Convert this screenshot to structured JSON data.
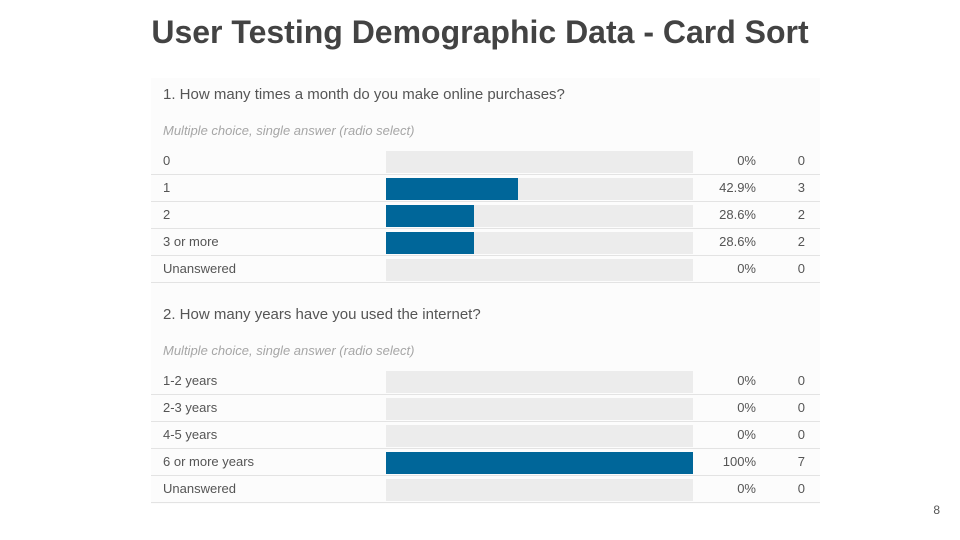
{
  "slide": {
    "title": "User Testing Demographic Data - Card Sort",
    "page_number": "8"
  },
  "colors": {
    "bar": "#006699",
    "track": "#ececec"
  },
  "chart_data": [
    {
      "type": "bar",
      "title": "1. How many times a month do you make online purchases?",
      "subtitle": "Multiple choice, single answer (radio select)",
      "categories": [
        "0",
        "1",
        "2",
        "3 or more",
        "Unanswered"
      ],
      "percent_labels": [
        "0%",
        "42.9%",
        "28.6%",
        "28.6%",
        "0%"
      ],
      "values": [
        0,
        3,
        2,
        2,
        0
      ],
      "percent": [
        0,
        42.9,
        28.6,
        28.6,
        0
      ],
      "xlim": [
        0,
        100
      ]
    },
    {
      "type": "bar",
      "title": "2. How many years have you used the internet?",
      "subtitle": "Multiple choice, single answer (radio select)",
      "categories": [
        "1-2 years",
        "2-3 years",
        "4-5 years",
        "6 or more years",
        "Unanswered"
      ],
      "percent_labels": [
        "0%",
        "0%",
        "0%",
        "100%",
        "0%"
      ],
      "values": [
        0,
        0,
        0,
        7,
        0
      ],
      "percent": [
        0,
        0,
        0,
        100,
        0
      ],
      "xlim": [
        0,
        100
      ]
    }
  ]
}
